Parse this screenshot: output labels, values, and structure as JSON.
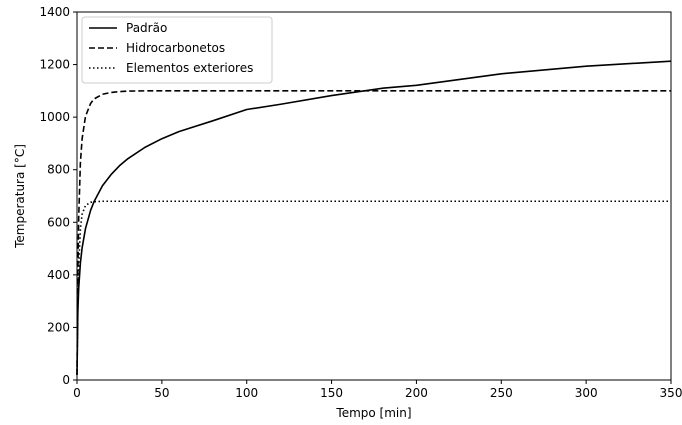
{
  "chart_data": {
    "type": "line",
    "xlabel": "Tempo [min]",
    "ylabel": "Temperatura [°C]",
    "xlim": [
      0,
      350
    ],
    "ylim": [
      0,
      1400
    ],
    "xticks": [
      0,
      50,
      100,
      150,
      200,
      250,
      300,
      350
    ],
    "yticks": [
      0,
      200,
      400,
      600,
      800,
      1000,
      1200,
      1400
    ],
    "grid": false,
    "legend_position": "top-left",
    "series": [
      {
        "name": "Padrão",
        "style": "solid",
        "color": "#000000",
        "x": [
          0,
          0.5,
          1,
          2,
          3,
          5,
          8,
          10,
          15,
          20,
          25,
          30,
          40,
          50,
          60,
          80,
          100,
          120,
          150,
          180,
          200,
          250,
          300,
          350
        ],
        "y": [
          20,
          261,
          349,
          445,
          502,
          576,
          645,
          678,
          739,
          781,
          815,
          842,
          885,
          918,
          945,
          986,
          1029,
          1049,
          1082,
          1110,
          1121,
          1165,
          1194,
          1213
        ]
      },
      {
        "name": "Hidrocarbonetos",
        "style": "dashed",
        "color": "#000000",
        "x": [
          0,
          0.5,
          1,
          2,
          3,
          5,
          8,
          10,
          15,
          20,
          25,
          30,
          40,
          60,
          100,
          150,
          200,
          250,
          300,
          350
        ],
        "y": [
          20,
          407,
          618,
          826,
          917,
          1003,
          1052,
          1069,
          1087,
          1094,
          1097,
          1099,
          1100,
          1100,
          1100,
          1100,
          1100,
          1100,
          1100,
          1100
        ]
      },
      {
        "name": "Elementos exteriores",
        "style": "dotted",
        "color": "#000000",
        "x": [
          0,
          0.5,
          1,
          2,
          3,
          5,
          8,
          10,
          15,
          20,
          30,
          50,
          100,
          150,
          200,
          250,
          300,
          350
        ],
        "y": [
          20,
          300,
          430,
          575,
          630,
          664,
          676,
          678,
          680,
          680,
          680,
          680,
          680,
          680,
          680,
          680,
          680,
          680
        ]
      }
    ]
  }
}
